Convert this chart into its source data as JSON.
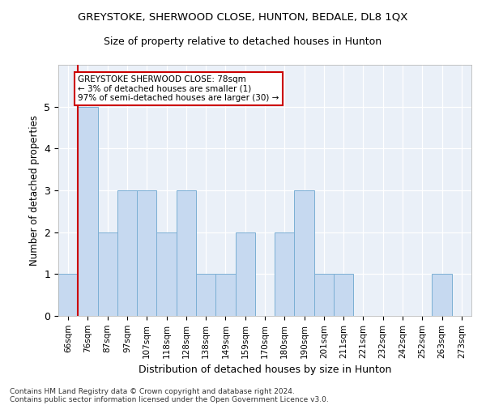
{
  "title1": "GREYSTOKE, SHERWOOD CLOSE, HUNTON, BEDALE, DL8 1QX",
  "title2": "Size of property relative to detached houses in Hunton",
  "xlabel": "Distribution of detached houses by size in Hunton",
  "ylabel": "Number of detached properties",
  "categories": [
    "66sqm",
    "76sqm",
    "87sqm",
    "97sqm",
    "107sqm",
    "118sqm",
    "128sqm",
    "138sqm",
    "149sqm",
    "159sqm",
    "170sqm",
    "180sqm",
    "190sqm",
    "201sqm",
    "211sqm",
    "221sqm",
    "232sqm",
    "242sqm",
    "252sqm",
    "263sqm",
    "273sqm"
  ],
  "values": [
    1,
    5,
    2,
    3,
    3,
    2,
    3,
    1,
    1,
    2,
    0,
    2,
    3,
    1,
    1,
    0,
    0,
    0,
    0,
    1,
    0
  ],
  "bar_color": "#c6d9f0",
  "bar_edge_color": "#7bafd4",
  "subject_bar_index": 1,
  "subject_bar_edge_color": "#cc0000",
  "annotation_title": "GREYSTOKE SHERWOOD CLOSE: 78sqm",
  "annotation_line1": "← 3% of detached houses are smaller (1)",
  "annotation_line2": "97% of semi-detached houses are larger (30) →",
  "ylim": [
    0,
    6
  ],
  "yticks": [
    0,
    1,
    2,
    3,
    4,
    5,
    6
  ],
  "footer1": "Contains HM Land Registry data © Crown copyright and database right 2024.",
  "footer2": "Contains public sector information licensed under the Open Government Licence v3.0.",
  "bg_color": "#eaf0f8"
}
